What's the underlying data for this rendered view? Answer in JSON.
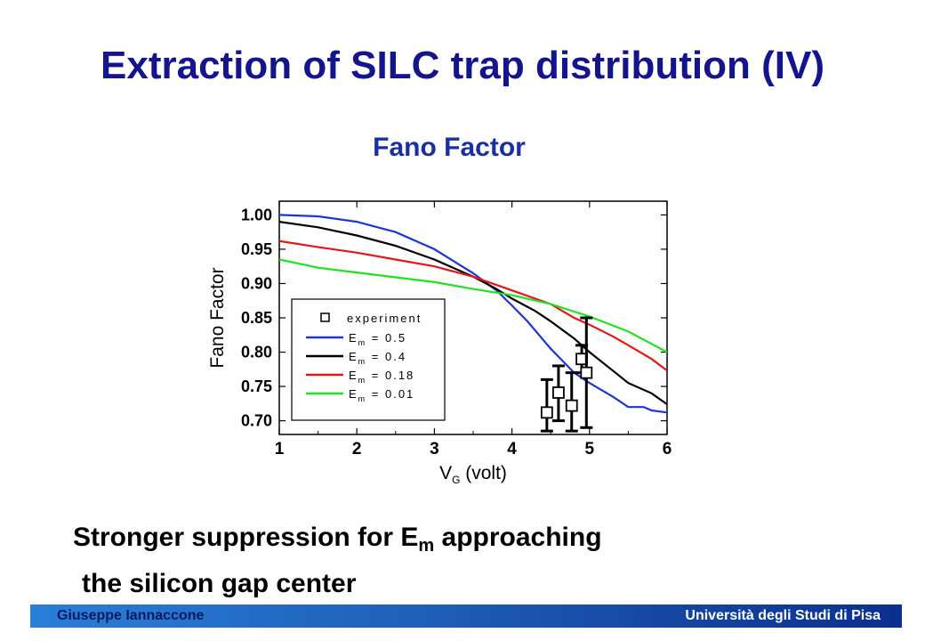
{
  "slide": {
    "title": "Extraction of SILC trap distribution (IV)",
    "subtitle": "Fano Factor",
    "caption_line1_pre": "Stronger suppression for E",
    "caption_line1_sub": "m",
    "caption_line1_post": " approaching",
    "caption_line2": "the silicon gap center",
    "footer_left": "Giuseppe Iannaccone",
    "footer_right": "Università degli Studi di Pisa"
  },
  "chart_data": {
    "type": "line",
    "xlabel_main": "V",
    "xlabel_sub": "G",
    "xlabel_unit": " (volt)",
    "ylabel": "Fano Factor",
    "xlim": [
      1,
      6
    ],
    "ylim": [
      0.68,
      1.02
    ],
    "x_ticks": [
      1,
      2,
      3,
      4,
      5,
      6
    ],
    "y_ticks": [
      0.7,
      0.75,
      0.8,
      0.85,
      0.9,
      0.95,
      1.0
    ],
    "y_tick_labels": [
      "0.70",
      "0.75",
      "0.80",
      "0.85",
      "0.90",
      "0.95",
      "1.00"
    ],
    "legend_position": "left",
    "series": [
      {
        "name_pre": "E",
        "name_sub": "m",
        "name_post": " = 0.5",
        "color": "#1f35d0",
        "x": [
          1.0,
          1.5,
          2.0,
          2.5,
          3.0,
          3.5,
          3.8,
          4.0,
          4.2,
          4.5,
          4.8,
          5.0,
          5.3,
          5.5,
          5.7,
          5.8,
          6.0
        ],
        "y": [
          1.0,
          0.998,
          0.99,
          0.975,
          0.95,
          0.915,
          0.89,
          0.868,
          0.845,
          0.805,
          0.77,
          0.755,
          0.735,
          0.72,
          0.72,
          0.715,
          0.712
        ]
      },
      {
        "name_pre": "E",
        "name_sub": "m",
        "name_post": " = 0.4",
        "color": "#000000",
        "x": [
          1.0,
          1.5,
          2.0,
          2.5,
          3.0,
          3.5,
          3.8,
          4.0,
          4.3,
          4.5,
          4.8,
          5.0,
          5.3,
          5.5,
          5.8,
          6.0
        ],
        "y": [
          0.99,
          0.982,
          0.97,
          0.955,
          0.935,
          0.91,
          0.892,
          0.878,
          0.86,
          0.845,
          0.82,
          0.8,
          0.773,
          0.755,
          0.74,
          0.724
        ]
      },
      {
        "name_pre": "E",
        "name_sub": "m",
        "name_post": " = 0.18",
        "color": "#e01818",
        "x": [
          1.0,
          1.5,
          2.0,
          2.5,
          3.0,
          3.5,
          4.0,
          4.5,
          4.8,
          5.0,
          5.3,
          5.5,
          5.8,
          6.0
        ],
        "y": [
          0.962,
          0.953,
          0.945,
          0.935,
          0.925,
          0.91,
          0.89,
          0.87,
          0.85,
          0.84,
          0.823,
          0.81,
          0.79,
          0.773
        ]
      },
      {
        "name_pre": "E",
        "name_sub": "m",
        "name_post": " = 0.01",
        "color": "#22e022",
        "x": [
          1.0,
          1.5,
          2.0,
          2.5,
          3.0,
          3.5,
          4.0,
          4.5,
          5.0,
          5.5,
          6.0
        ],
        "y": [
          0.935,
          0.923,
          0.916,
          0.909,
          0.902,
          0.892,
          0.883,
          0.87,
          0.852,
          0.83,
          0.8
        ]
      }
    ],
    "experiment": {
      "name": "experiment",
      "points": [
        {
          "x": 4.45,
          "y": 0.712,
          "ylo": 0.685,
          "yhi": 0.76
        },
        {
          "x": 4.6,
          "y": 0.741,
          "ylo": 0.7,
          "yhi": 0.78
        },
        {
          "x": 4.77,
          "y": 0.722,
          "ylo": 0.685,
          "yhi": 0.77
        },
        {
          "x": 4.9,
          "y": 0.79,
          "ylo": 0.77,
          "yhi": 0.81
        },
        {
          "x": 4.96,
          "y": 0.77,
          "ylo": 0.69,
          "yhi": 0.85
        }
      ]
    }
  }
}
